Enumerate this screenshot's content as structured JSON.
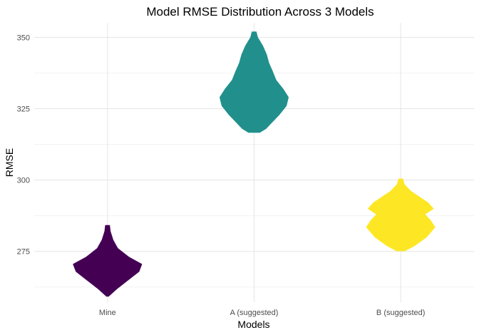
{
  "chart_data": {
    "type": "violin",
    "title": "Model RMSE Distribution Across 3 Models",
    "xlabel": "Models",
    "ylabel": "RMSE",
    "categories": [
      "Mine",
      "A (suggested)",
      "B (suggested)"
    ],
    "ylim": [
      257.2,
      355.1
    ],
    "yticks": [
      275,
      300,
      325,
      350
    ],
    "grid": true,
    "legend": "none",
    "series": [
      {
        "category": "Mine",
        "color": "#440154",
        "min": 259.3,
        "max": 284.1,
        "profile": [
          [
            259.3,
            0.03
          ],
          [
            262.0,
            0.28
          ],
          [
            265.0,
            0.6
          ],
          [
            268.0,
            0.92
          ],
          [
            270.5,
            1.0
          ],
          [
            273.0,
            0.62
          ],
          [
            276.0,
            0.3
          ],
          [
            279.0,
            0.16
          ],
          [
            282.0,
            0.08
          ],
          [
            284.1,
            0.06
          ]
        ]
      },
      {
        "category": "A (suggested)",
        "color": "#21908C",
        "min": 316.7,
        "max": 351.9,
        "profile": [
          [
            316.7,
            0.16
          ],
          [
            318.0,
            0.34
          ],
          [
            320.0,
            0.5
          ],
          [
            323.0,
            0.74
          ],
          [
            326.0,
            0.94
          ],
          [
            329.0,
            1.0
          ],
          [
            332.0,
            0.84
          ],
          [
            335.0,
            0.64
          ],
          [
            338.0,
            0.54
          ],
          [
            341.0,
            0.43
          ],
          [
            344.0,
            0.36
          ],
          [
            347.0,
            0.25
          ],
          [
            350.0,
            0.1
          ],
          [
            351.9,
            0.06
          ]
        ]
      },
      {
        "category": "B (suggested)",
        "color": "#FDE725",
        "min": 275.2,
        "max": 300.4,
        "profile": [
          [
            275.2,
            0.12
          ],
          [
            277.0,
            0.4
          ],
          [
            280.0,
            0.75
          ],
          [
            283.5,
            1.0
          ],
          [
            286.0,
            0.86
          ],
          [
            288.0,
            0.7
          ],
          [
            290.0,
            0.95
          ],
          [
            292.0,
            0.8
          ],
          [
            294.0,
            0.55
          ],
          [
            296.0,
            0.3
          ],
          [
            298.5,
            0.1
          ],
          [
            300.4,
            0.06
          ]
        ]
      }
    ]
  }
}
